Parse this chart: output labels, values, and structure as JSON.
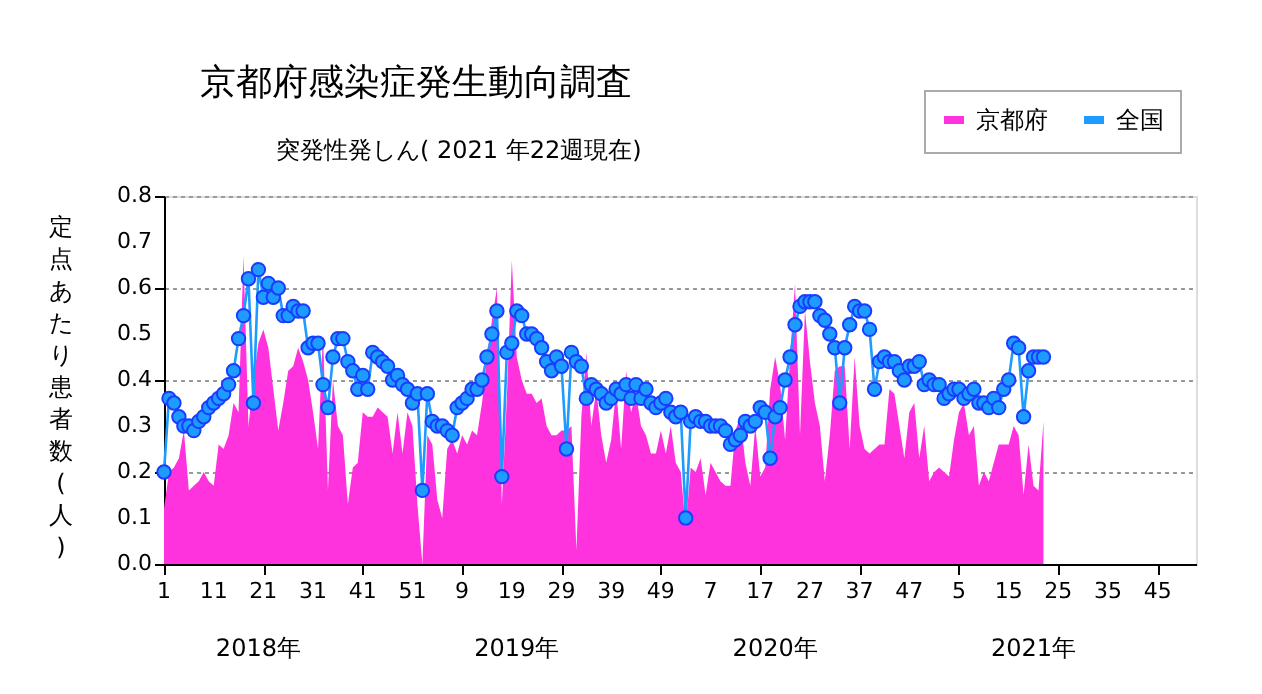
{
  "chart_data": {
    "type": "area",
    "title": "京都府感染症発生動向調査",
    "subtitle": "突発性発しん( 2021 年22週現在)",
    "ylabel": "定点あたり患者数(人)",
    "categories": [
      "1",
      null,
      null,
      null,
      null,
      null,
      null,
      null,
      null,
      null,
      "11",
      null,
      null,
      null,
      null,
      null,
      null,
      null,
      null,
      null,
      "21",
      null,
      null,
      null,
      null,
      null,
      null,
      null,
      null,
      null,
      "31",
      null,
      null,
      null,
      null,
      null,
      null,
      null,
      null,
      null,
      "41",
      null,
      null,
      null,
      null,
      null,
      null,
      null,
      null,
      null,
      "51",
      null,
      null,
      null,
      null,
      null,
      null,
      null,
      null,
      null,
      "9",
      null,
      null,
      null,
      null,
      null,
      null,
      null,
      null,
      null,
      "19",
      null,
      null,
      null,
      null,
      null,
      null,
      null,
      null,
      null,
      "29",
      null,
      null,
      null,
      null,
      null,
      null,
      null,
      null,
      null,
      "39",
      null,
      null,
      null,
      null,
      null,
      null,
      null,
      null,
      null,
      "49",
      null,
      null,
      null,
      null,
      null,
      null,
      null,
      null,
      null,
      "7",
      null,
      null,
      null,
      null,
      null,
      null,
      null,
      null,
      null,
      "17",
      null,
      null,
      null,
      null,
      null,
      null,
      null,
      null,
      null,
      "27",
      null,
      null,
      null,
      null,
      null,
      null,
      null,
      null,
      null,
      "37",
      null,
      null,
      null,
      null,
      null,
      null,
      null,
      null,
      null,
      "47",
      null,
      null,
      null,
      null,
      null,
      null,
      null,
      null,
      null,
      "5",
      null,
      null,
      null,
      null,
      null,
      null,
      null,
      null,
      null,
      "15",
      null,
      null,
      null,
      null,
      null,
      null,
      null,
      null,
      null,
      "25",
      null,
      null,
      null,
      null,
      null,
      null,
      null,
      null,
      null,
      "35",
      null,
      null,
      null,
      null,
      null,
      null,
      null,
      null,
      null,
      "45",
      null,
      null,
      null,
      null,
      null,
      null,
      null
    ],
    "series": [
      {
        "name": "京都府",
        "type": "area",
        "color": "#ff33dd",
        "values": [
          0.12,
          0.2,
          0.21,
          0.23,
          0.29,
          0.16,
          0.17,
          0.18,
          0.2,
          0.18,
          0.17,
          0.26,
          0.25,
          0.28,
          0.35,
          0.33,
          0.67,
          0.3,
          0.4,
          0.48,
          0.51,
          0.47,
          0.38,
          0.29,
          0.35,
          0.42,
          0.43,
          0.47,
          0.44,
          0.4,
          0.33,
          0.25,
          0.5,
          0.16,
          0.4,
          0.3,
          0.28,
          0.13,
          0.21,
          0.22,
          0.33,
          0.32,
          0.32,
          0.34,
          0.33,
          0.32,
          0.24,
          0.33,
          0.24,
          0.33,
          0.3,
          0.13,
          0.0,
          0.28,
          0.26,
          0.14,
          0.1,
          0.25,
          0.27,
          0.24,
          0.28,
          0.26,
          0.29,
          0.28,
          0.35,
          0.45,
          0.53,
          0.6,
          0.13,
          0.36,
          0.66,
          0.45,
          0.4,
          0.37,
          0.37,
          0.35,
          0.36,
          0.3,
          0.28,
          0.28,
          0.29,
          0.29,
          0.3,
          0.03,
          0.32,
          0.46,
          0.3,
          0.38,
          0.28,
          0.22,
          0.27,
          0.38,
          0.25,
          0.42,
          0.33,
          0.37,
          0.3,
          0.28,
          0.24,
          0.24,
          0.29,
          0.24,
          0.3,
          0.22,
          0.2,
          0.08,
          0.21,
          0.2,
          0.23,
          0.15,
          0.22,
          0.2,
          0.18,
          0.17,
          0.17,
          0.29,
          0.32,
          0.22,
          0.17,
          0.3,
          0.19,
          0.21,
          0.38,
          0.45,
          0.39,
          0.27,
          0.45,
          0.61,
          0.28,
          0.55,
          0.44,
          0.35,
          0.3,
          0.18,
          0.28,
          0.42,
          0.43,
          0.43,
          0.25,
          0.45,
          0.3,
          0.25,
          0.24,
          0.25,
          0.26,
          0.26,
          0.38,
          0.37,
          0.3,
          0.23,
          0.33,
          0.35,
          0.23,
          0.3,
          0.18,
          0.2,
          0.21,
          0.2,
          0.19,
          0.27,
          0.33,
          0.35,
          0.28,
          0.3,
          0.17,
          0.2,
          0.18,
          0.22,
          0.26,
          0.26,
          0.26,
          0.3,
          0.28,
          0.15,
          0.26,
          0.17,
          0.16,
          0.31,
          null,
          null,
          null,
          null,
          null,
          null,
          null,
          null,
          null,
          null,
          null,
          null,
          null,
          null,
          null,
          null,
          null,
          null,
          null,
          null,
          null,
          null,
          null,
          null,
          null,
          null,
          null,
          null,
          null,
          null
        ]
      },
      {
        "name": "全国",
        "type": "line",
        "marker": "circle",
        "color": "#1e9bff",
        "values": [
          0.2,
          0.36,
          0.35,
          0.32,
          0.3,
          0.3,
          0.29,
          0.31,
          0.32,
          0.34,
          0.35,
          0.36,
          0.37,
          0.39,
          0.42,
          0.49,
          0.54,
          0.62,
          0.35,
          0.64,
          0.58,
          0.61,
          0.58,
          0.6,
          0.54,
          0.54,
          0.56,
          0.55,
          0.55,
          0.47,
          0.48,
          0.48,
          0.39,
          0.34,
          0.45,
          0.49,
          0.49,
          0.44,
          0.42,
          0.38,
          0.41,
          0.38,
          0.46,
          0.45,
          0.44,
          0.43,
          0.4,
          0.41,
          0.39,
          0.38,
          0.35,
          0.37,
          0.16,
          0.37,
          0.31,
          0.3,
          0.3,
          0.29,
          0.28,
          0.34,
          0.35,
          0.36,
          0.38,
          0.38,
          0.4,
          0.45,
          0.5,
          0.55,
          0.19,
          0.46,
          0.48,
          0.55,
          0.54,
          0.5,
          0.5,
          0.49,
          0.47,
          0.44,
          0.42,
          0.45,
          0.43,
          0.25,
          0.46,
          0.44,
          0.43,
          0.36,
          0.39,
          0.38,
          0.37,
          0.35,
          0.36,
          0.38,
          0.37,
          0.39,
          0.36,
          0.39,
          0.36,
          0.38,
          0.35,
          0.34,
          0.35,
          0.36,
          0.33,
          0.32,
          0.33,
          0.1,
          0.31,
          0.32,
          0.31,
          0.31,
          0.3,
          0.3,
          0.3,
          0.29,
          0.26,
          0.27,
          0.28,
          0.31,
          0.3,
          0.31,
          0.34,
          0.33,
          0.23,
          0.32,
          0.34,
          0.4,
          0.45,
          0.52,
          0.56,
          0.57,
          0.57,
          0.57,
          0.54,
          0.53,
          0.5,
          0.47,
          0.35,
          0.47,
          0.52,
          0.56,
          0.55,
          0.55,
          0.51,
          0.38,
          0.44,
          0.45,
          0.44,
          0.44,
          0.42,
          0.4,
          0.43,
          0.43,
          0.44,
          0.39,
          0.4,
          0.39,
          0.39,
          0.36,
          0.37,
          0.38,
          0.38,
          0.36,
          0.37,
          0.38,
          0.35,
          0.35,
          0.34,
          0.36,
          0.34,
          0.38,
          0.4,
          0.48,
          0.47,
          0.32,
          0.42,
          0.45,
          0.45,
          0.45,
          null,
          null,
          null,
          null,
          null,
          null,
          null,
          null,
          null,
          null,
          null,
          null,
          null,
          null,
          null,
          null,
          null,
          null,
          null,
          null,
          null,
          null,
          null,
          null,
          null,
          null,
          null,
          null,
          null,
          null
        ]
      }
    ],
    "ylim": [
      0,
      0.8
    ],
    "yticks": [
      {
        "value": 0,
        "label": "0.0"
      },
      {
        "value": 0.1,
        "label": "0.1"
      },
      {
        "value": 0.2,
        "label": "0.2"
      },
      {
        "value": 0.3,
        "label": "0.3"
      },
      {
        "value": 0.4,
        "label": "0.4"
      },
      {
        "value": 0.5,
        "label": "0.5"
      },
      {
        "value": 0.6,
        "label": "0.6"
      },
      {
        "value": 0.7,
        "label": "0.7"
      },
      {
        "value": 0.8,
        "label": "0.8"
      }
    ],
    "annotations": [
      "2018年",
      "2019年",
      "2020年",
      "2021年"
    ],
    "grid": "y",
    "legend": "top right",
    "line_style": "solid"
  }
}
